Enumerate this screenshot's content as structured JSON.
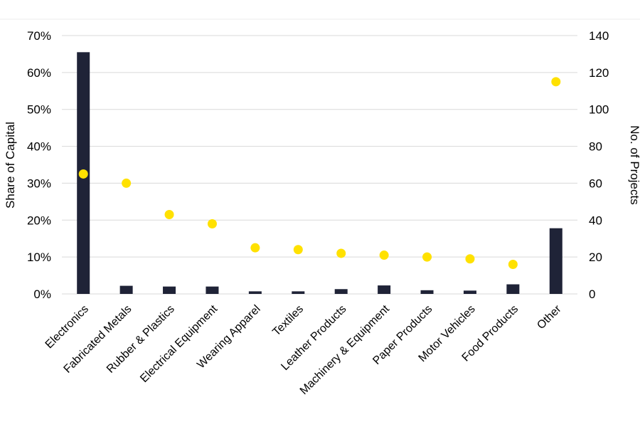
{
  "chart_data": {
    "type": "bar",
    "categories": [
      "Electronics",
      "Fabricated Metals",
      "Rubber & Plastics",
      "Electrical Equipment",
      "Wearing Apparel",
      "Textiles",
      "Leather Products",
      "Machinery & Equipment",
      "Paper Products",
      "Motor Vehicles",
      "Food Products",
      "Other"
    ],
    "series": [
      {
        "type": "bar",
        "axis": "left",
        "values": [
          65.5,
          2.2,
          2.0,
          2.0,
          0.7,
          0.7,
          1.3,
          2.3,
          1.0,
          0.9,
          2.6,
          17.8
        ]
      },
      {
        "type": "scatter",
        "axis": "right",
        "values": [
          65,
          60,
          43,
          38,
          25,
          24,
          22,
          21,
          20,
          19,
          16,
          115
        ]
      }
    ],
    "ylabel": "Share of Capital",
    "y2label": "No. of Projects",
    "ylim": [
      0,
      70
    ],
    "y2lim": [
      0,
      140
    ],
    "yticks": [
      "0%",
      "10%",
      "20%",
      "30%",
      "40%",
      "50%",
      "60%",
      "70%"
    ],
    "y2ticks": [
      "0",
      "20",
      "40",
      "60",
      "80",
      "100",
      "120",
      "140"
    ],
    "grid": true,
    "legend": "none",
    "colors": {
      "bar": "#1f2337",
      "point": "#ffe100",
      "grid": "#d9d9d9"
    }
  }
}
